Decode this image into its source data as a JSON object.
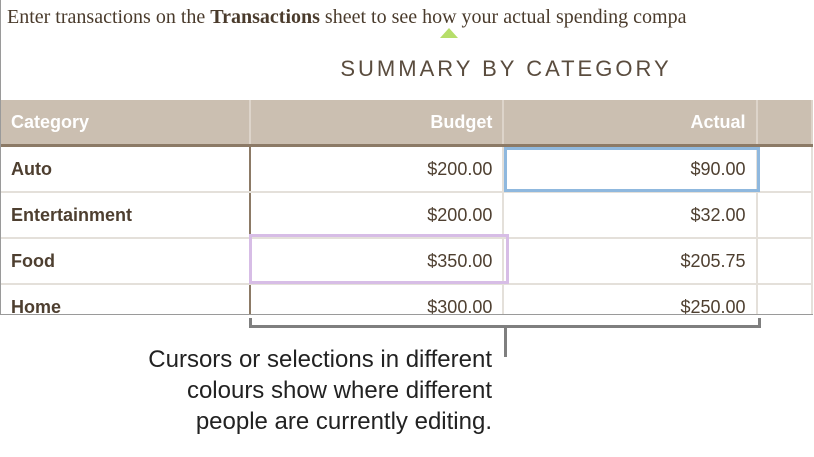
{
  "intro": {
    "before": "Enter transactions on the ",
    "bold": "Transactions",
    "after": " sheet to see how your actual spending compa"
  },
  "title": "SUMMARY BY CATEGORY",
  "table": {
    "headers": [
      "Category",
      "Budget",
      "Actual"
    ],
    "rows": [
      {
        "category": "Auto",
        "budget": "$200.00",
        "actual": "$90.00"
      },
      {
        "category": "Entertainment",
        "budget": "$200.00",
        "actual": "$32.00"
      },
      {
        "category": "Food",
        "budget": "$350.00",
        "actual": "$205.75"
      },
      {
        "category": "Home",
        "budget": "$300.00",
        "actual": "$250.00"
      }
    ]
  },
  "colors": {
    "header_bg": "#cbbfb1",
    "cursor_green": "#b6de6a",
    "selection_blue": "#8fb8de",
    "selection_purple": "#d7bde6"
  },
  "caption": [
    "Cursors or selections in different",
    "colours show where different",
    "people are currently editing."
  ]
}
